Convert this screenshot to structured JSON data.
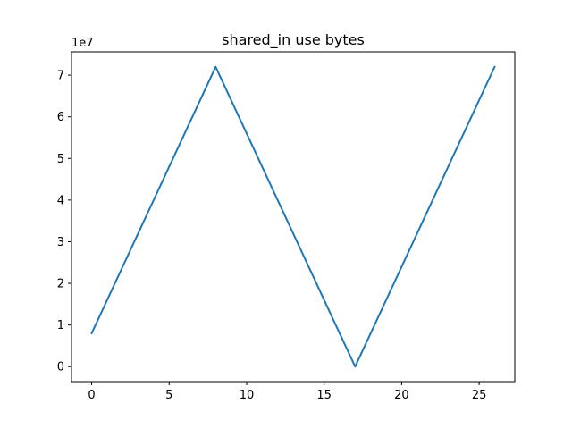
{
  "chart_data": {
    "type": "line",
    "title": "shared_in use bytes",
    "xlabel": "",
    "ylabel": "",
    "offset_label": "1e7",
    "xlim": [
      -1.3,
      27.3
    ],
    "ylim": [
      -0.36,
      7.56
    ],
    "y_scale_note": "values in units of 1e7",
    "x_ticks": [
      0,
      5,
      10,
      15,
      20,
      25
    ],
    "x_tick_labels": [
      "0",
      "5",
      "10",
      "15",
      "20",
      "25"
    ],
    "y_ticks": [
      0,
      1,
      2,
      3,
      4,
      5,
      6,
      7
    ],
    "y_tick_labels": [
      "0",
      "1",
      "2",
      "3",
      "4",
      "5",
      "6",
      "7"
    ],
    "grid": false,
    "series": [
      {
        "color": "#1f77b4",
        "x": [
          0,
          8,
          17,
          26
        ],
        "y": [
          0.8,
          7.2,
          0.0,
          7.2
        ]
      }
    ]
  }
}
